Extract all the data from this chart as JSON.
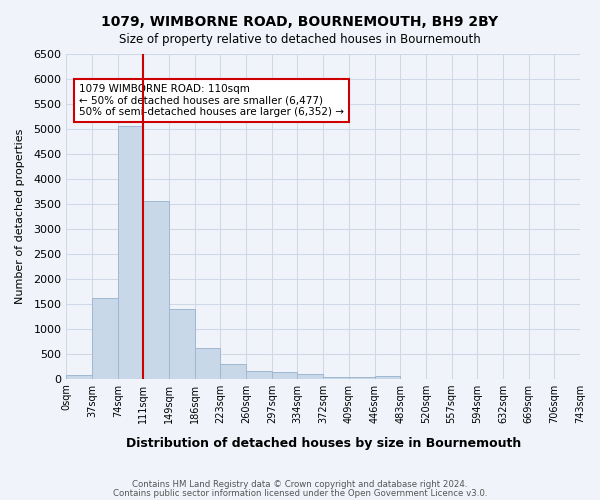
{
  "title": "1079, WIMBORNE ROAD, BOURNEMOUTH, BH9 2BY",
  "subtitle": "Size of property relative to detached houses in Bournemouth",
  "xlabel": "Distribution of detached houses by size in Bournemouth",
  "ylabel": "Number of detached properties",
  "footer1": "Contains HM Land Registry data © Crown copyright and database right 2024.",
  "footer2": "Contains public sector information licensed under the Open Government Licence v3.0.",
  "bin_labels": [
    "0sqm",
    "37sqm",
    "74sqm",
    "111sqm",
    "149sqm",
    "186sqm",
    "223sqm",
    "260sqm",
    "297sqm",
    "334sqm",
    "372sqm",
    "409sqm",
    "446sqm",
    "483sqm",
    "520sqm",
    "557sqm",
    "594sqm",
    "632sqm",
    "669sqm",
    "706sqm",
    "743sqm"
  ],
  "bar_values": [
    75,
    1625,
    5050,
    3550,
    1400,
    610,
    300,
    155,
    140,
    90,
    40,
    30,
    60,
    0,
    0,
    0,
    0,
    0,
    0,
    0
  ],
  "bar_color": "#c8d8e8",
  "bar_edge_color": "#a0b8d0",
  "vline_x": 3,
  "vline_color": "#cc0000",
  "annotation_text": "1079 WIMBORNE ROAD: 110sqm\n← 50% of detached houses are smaller (6,477)\n50% of semi-detached houses are larger (6,352) →",
  "annotation_box_color": "#ffffff",
  "annotation_box_edge_color": "#cc0000",
  "ylim": [
    0,
    6500
  ],
  "yticks": [
    0,
    500,
    1000,
    1500,
    2000,
    2500,
    3000,
    3500,
    4000,
    4500,
    5000,
    5500,
    6000,
    6500
  ],
  "grid_color": "#d0d8e8",
  "bg_color": "#f0f4fa"
}
